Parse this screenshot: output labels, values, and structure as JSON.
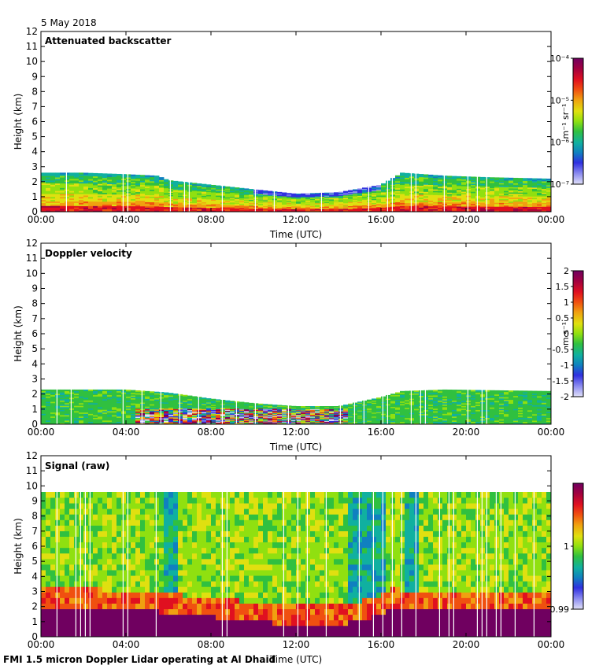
{
  "page": {
    "date_label": "5 May 2018",
    "footer": "FMI 1.5 micron Doppler Lidar operating at Al Dhaid"
  },
  "colorscale": [
    "#e0e0f8",
    "#9090f0",
    "#3030e0",
    "#1080c0",
    "#10b0a0",
    "#30c040",
    "#90e010",
    "#e0e010",
    "#f0a010",
    "#f05010",
    "#e01020",
    "#a00040",
    "#700060"
  ],
  "chart_data": [
    {
      "type": "heatmap",
      "title": "Attenuated backscatter",
      "xlabel": "Time (UTC)",
      "ylabel": "Height (km)",
      "xlim": [
        0,
        24
      ],
      "ylim": [
        0,
        12
      ],
      "x_ticks": [
        "00:00",
        "04:00",
        "08:00",
        "12:00",
        "16:00",
        "20:00",
        "00:00"
      ],
      "y_ticks": [
        "0",
        "1",
        "2",
        "3",
        "4",
        "5",
        "6",
        "7",
        "8",
        "9",
        "10",
        "11",
        "12"
      ],
      "colorbar": {
        "unit": "m⁻¹ sr⁻¹",
        "scale": "log",
        "range": [
          1e-07,
          0.0001
        ],
        "ticks": [
          "10⁻⁴",
          "10⁻⁵",
          "10⁻⁶",
          "10⁻⁷"
        ]
      },
      "layer_top_km": [
        [
          0,
          2.6
        ],
        [
          2,
          2.6
        ],
        [
          4,
          2.5
        ],
        [
          5.5,
          2.4
        ],
        [
          6,
          2.1
        ],
        [
          8,
          1.8
        ],
        [
          10,
          1.5
        ],
        [
          12,
          1.2
        ],
        [
          14,
          1.3
        ],
        [
          16,
          1.8
        ],
        [
          16.5,
          2.2
        ],
        [
          17,
          2.6
        ],
        [
          19,
          2.4
        ],
        [
          21,
          2.3
        ],
        [
          24,
          2.2
        ]
      ]
    },
    {
      "type": "heatmap",
      "title": "Doppler velocity",
      "xlabel": "Time (UTC)",
      "ylabel": "Height (km)",
      "xlim": [
        0,
        24
      ],
      "ylim": [
        0,
        12
      ],
      "x_ticks": [
        "00:00",
        "04:00",
        "08:00",
        "12:00",
        "16:00",
        "20:00",
        "00:00"
      ],
      "y_ticks": [
        "0",
        "1",
        "2",
        "3",
        "4",
        "5",
        "6",
        "7",
        "8",
        "9",
        "10",
        "11",
        "12"
      ],
      "colorbar": {
        "unit": "m s⁻¹",
        "scale": "linear",
        "range": [
          -2,
          2
        ],
        "ticks": [
          "2",
          "1.5",
          "1",
          "0.5",
          "0",
          "-0.5",
          "-1",
          "-1.5",
          "-2"
        ]
      },
      "layer_top_km": [
        [
          0,
          2.3
        ],
        [
          2,
          2.3
        ],
        [
          4,
          2.3
        ],
        [
          6,
          2.1
        ],
        [
          8,
          1.7
        ],
        [
          10,
          1.4
        ],
        [
          12,
          1.2
        ],
        [
          14,
          1.2
        ],
        [
          16,
          1.8
        ],
        [
          17,
          2.2
        ],
        [
          19,
          2.3
        ],
        [
          24,
          2.2
        ]
      ]
    },
    {
      "type": "heatmap",
      "title": "Signal (raw)",
      "xlabel": "Time (UTC)",
      "ylabel": "Height (km)",
      "xlim": [
        0,
        24
      ],
      "ylim": [
        0,
        12
      ],
      "x_ticks": [
        "00:00",
        "04:00",
        "08:00",
        "12:00",
        "16:00",
        "20:00",
        "00:00"
      ],
      "y_ticks": [
        "0",
        "1",
        "2",
        "3",
        "4",
        "5",
        "6",
        "7",
        "8",
        "9",
        "10",
        "11",
        "12"
      ],
      "colorbar": {
        "unit": "",
        "scale": "linear",
        "range": [
          0.99,
          1.01
        ],
        "ticks": [
          "1",
          "0.99"
        ]
      },
      "signal_top_km": 9.6,
      "boundary_layer_km": [
        [
          0,
          2.1
        ],
        [
          2,
          2.1
        ],
        [
          4,
          2.0
        ],
        [
          6,
          1.8
        ],
        [
          8,
          1.5
        ],
        [
          10,
          1.2
        ],
        [
          12,
          1.0
        ],
        [
          14,
          1.0
        ],
        [
          16,
          1.6
        ],
        [
          16.5,
          2.2
        ],
        [
          17,
          2.0
        ],
        [
          19,
          2.0
        ],
        [
          21,
          2.0
        ],
        [
          24,
          2.0
        ]
      ]
    }
  ]
}
